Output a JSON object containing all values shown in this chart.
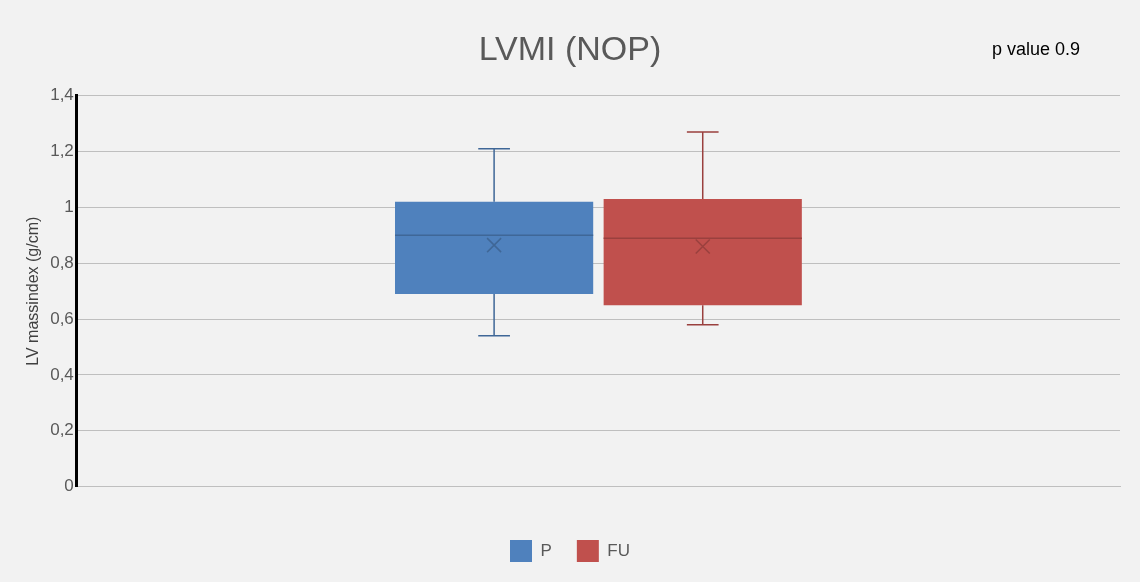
{
  "chart_data": {
    "type": "box",
    "title": "LVMI (NOP)",
    "ylabel": "LV massindex (g/cm)",
    "annotations": [
      "p value 0.9"
    ],
    "categories": [
      null
    ],
    "series": [
      {
        "name": "P",
        "color": "#4f81bd",
        "boxes": [
          {
            "low": 0.54,
            "q1": 0.69,
            "median": 0.9,
            "q3": 1.02,
            "high": 1.21,
            "mean": 0.865
          }
        ]
      },
      {
        "name": "FU",
        "color": "#c0504d",
        "boxes": [
          {
            "low": 0.58,
            "q1": 0.65,
            "median": 0.89,
            "q3": 1.03,
            "high": 1.27,
            "mean": 0.86
          }
        ]
      }
    ],
    "ylim": [
      0,
      1.4
    ],
    "yticks": [
      0,
      {
        "value": 0.2,
        "label": "0,2"
      },
      {
        "value": 0.4,
        "label": "0,4"
      },
      {
        "value": 0.6,
        "label": "0,6"
      },
      {
        "value": 0.8,
        "label": "0,8"
      },
      1,
      {
        "value": 1.2,
        "label": "1,2"
      },
      {
        "value": 1.4,
        "label": "1,4"
      }
    ],
    "grid": "y",
    "legend": "bottom",
    "marker": "cross"
  }
}
